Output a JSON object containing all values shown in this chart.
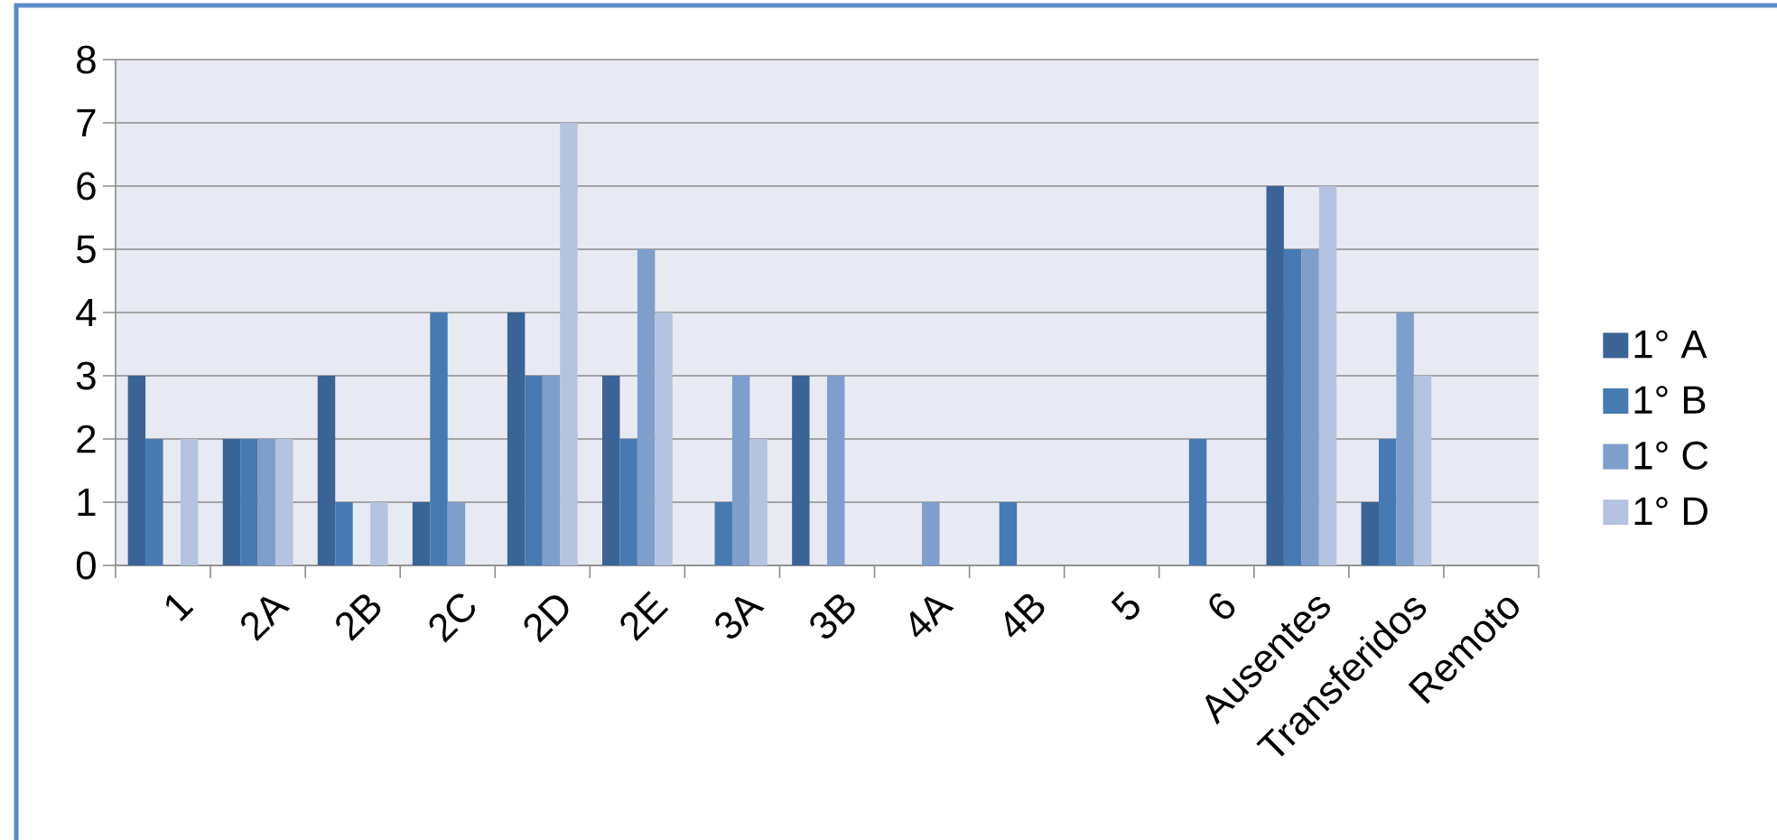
{
  "chart_data": {
    "type": "bar",
    "categories": [
      "1",
      "2A",
      "2B",
      "2C",
      "2D",
      "2E",
      "3A",
      "3B",
      "4A",
      "4B",
      "5",
      "6",
      "Ausentes",
      "Transferidos",
      "Remoto"
    ],
    "series": [
      {
        "name": "1° A",
        "color": "#3a6396",
        "values": [
          3,
          2,
          3,
          1,
          4,
          3,
          0,
          3,
          0,
          0,
          0,
          0,
          6,
          1,
          0
        ]
      },
      {
        "name": "1° B",
        "color": "#4779b2",
        "values": [
          2,
          2,
          1,
          4,
          3,
          2,
          1,
          0,
          0,
          1,
          0,
          2,
          5,
          2,
          0
        ]
      },
      {
        "name": "1° C",
        "color": "#7e9ecc",
        "values": [
          0,
          2,
          0,
          1,
          3,
          5,
          3,
          3,
          1,
          0,
          0,
          0,
          5,
          4,
          0
        ]
      },
      {
        "name": "1° D",
        "color": "#b4c3df",
        "values": [
          2,
          2,
          1,
          0,
          7,
          4,
          2,
          0,
          0,
          0,
          0,
          0,
          6,
          3,
          0
        ]
      }
    ],
    "ylim": [
      0,
      8
    ],
    "yticks": [
      0,
      1,
      2,
      3,
      4,
      5,
      6,
      7,
      8
    ],
    "grid": "y",
    "legend": "right"
  }
}
